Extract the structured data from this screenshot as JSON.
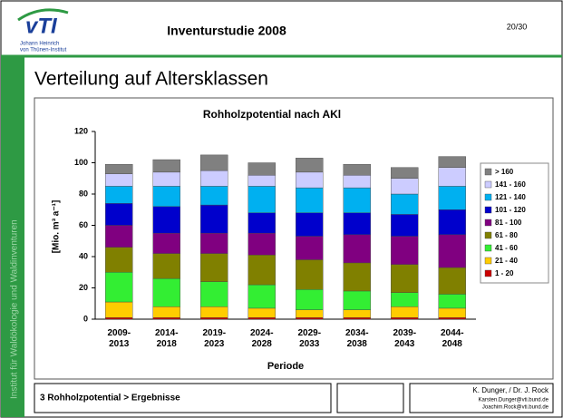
{
  "header": {
    "logo": "vTI",
    "institute_line1": "Johann Heinrich",
    "institute_line2": "von Thünen-Institut",
    "title": "Inventurstudie 2008",
    "page": "20/30"
  },
  "sidebar": "Institut für Waldökologie und Waldinventuren",
  "heading": "Verteilung auf Altersklassen",
  "chart_data": {
    "type": "stacked_bar",
    "title": "Rohholzpotential nach AKl",
    "x_label": "Periode",
    "y_label": "[Mio. m³ a⁻¹]",
    "categories": [
      "2009-\n2013",
      "2014-\n2018",
      "2019-\n2023",
      "2024-\n2028",
      "2029-\n2033",
      "2034-\n2038",
      "2039-\n2043",
      "2044-\n2048"
    ],
    "ylim": [
      0,
      120
    ],
    "yticks": [
      0,
      20,
      40,
      60,
      80,
      100,
      120
    ],
    "legend": "right",
    "series": [
      {
        "name": "1 - 20",
        "color": "#cc0000",
        "values": [
          1,
          1,
          1,
          1,
          1,
          1,
          1,
          1
        ]
      },
      {
        "name": "21 - 40",
        "color": "#ffcc00",
        "values": [
          10,
          7,
          7,
          6,
          5,
          5,
          7,
          6
        ]
      },
      {
        "name": "41 - 60",
        "color": "#33ee33",
        "values": [
          19,
          18,
          16,
          15,
          13,
          12,
          9,
          9
        ]
      },
      {
        "name": "61 - 80",
        "color": "#808000",
        "values": [
          16,
          16,
          18,
          19,
          19,
          18,
          18,
          17
        ]
      },
      {
        "name": "81 - 100",
        "color": "#800080",
        "values": [
          14,
          13,
          13,
          14,
          15,
          18,
          18,
          21
        ]
      },
      {
        "name": "101 - 120",
        "color": "#0000cc",
        "values": [
          14,
          17,
          18,
          13,
          15,
          14,
          14,
          16
        ]
      },
      {
        "name": "121 - 140",
        "color": "#00b0f0",
        "values": [
          11,
          13,
          12,
          17,
          16,
          16,
          13,
          15
        ]
      },
      {
        "name": "141 - 160",
        "color": "#ccccff",
        "values": [
          8,
          9,
          10,
          7,
          10,
          8,
          10,
          12
        ]
      },
      {
        "name": "> 160",
        "color": "#808080",
        "values": [
          6,
          8,
          10,
          8,
          9,
          7,
          7,
          7
        ]
      }
    ]
  },
  "footer": {
    "section": "3 Rohholzpotential > Ergebnisse",
    "authors": "K. Dunger, / Dr. J. Rock",
    "email1": "Karsten.Dunger@vti.bund.de",
    "email2": "Joachim.Rock@vti.bund.de"
  }
}
